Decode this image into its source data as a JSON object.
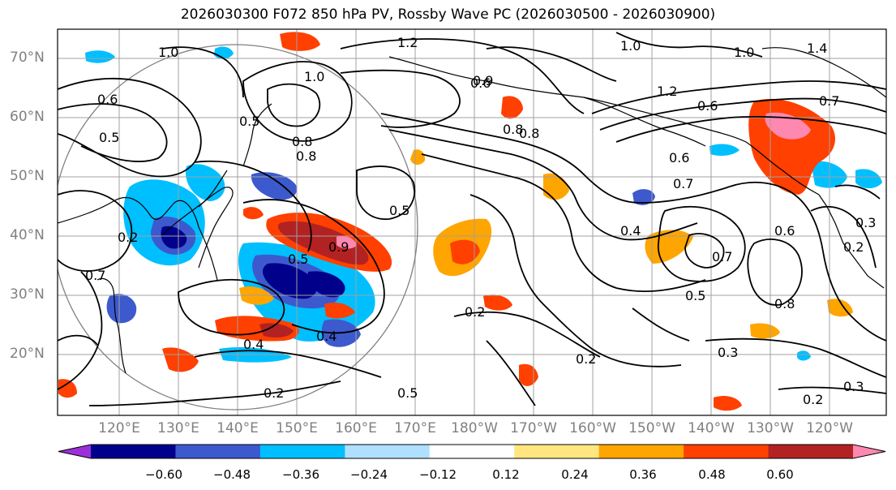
{
  "title": "2026030300 F072 850 hPa PV, Rossby Wave PC (2026030500 - 2026030900)",
  "lat_labels": [
    "70°N",
    "60°N",
    "50°N",
    "40°N",
    "30°N",
    "20°N"
  ],
  "lon_labels": [
    "120°E",
    "130°E",
    "140°E",
    "150°E",
    "160°E",
    "170°E",
    "180°W",
    "170°W",
    "160°W",
    "150°W",
    "140°W",
    "130°W",
    "120°W"
  ],
  "colorbar": {
    "ticks": [
      "−0.60",
      "−0.48",
      "−0.36",
      "−0.24",
      "−0.12",
      "0.12",
      "0.24",
      "0.36",
      "0.48",
      "0.60"
    ],
    "colors": [
      "#9b30d9",
      "#00008b",
      "#3c5acd",
      "#00bfff",
      "#b0e0ff",
      "#ffffff",
      "#ffe680",
      "#ffa500",
      "#ff4000",
      "#b22222",
      "#ff88b0"
    ]
  },
  "contour_labels": [
    "1.2",
    "1.0",
    "1.0",
    "1.0",
    "1.4",
    "1.0",
    "1.2",
    "0.6",
    "0.9",
    "0.8",
    "0.8",
    "0.5",
    "0.6",
    "0.7",
    "0.5",
    "0.8",
    "0.7",
    "0.5",
    "0.6",
    "0.4",
    "0.2",
    "0.5",
    "0.8",
    "0.3",
    "0.7",
    "0.5",
    "0.8",
    "0.2",
    "0.3",
    "0.2",
    "0.4",
    "0.2",
    "0.2",
    "0.3",
    "0.2",
    "0.4",
    "0.6",
    "0.9",
    "0.7",
    "0.6",
    "0.5"
  ]
}
